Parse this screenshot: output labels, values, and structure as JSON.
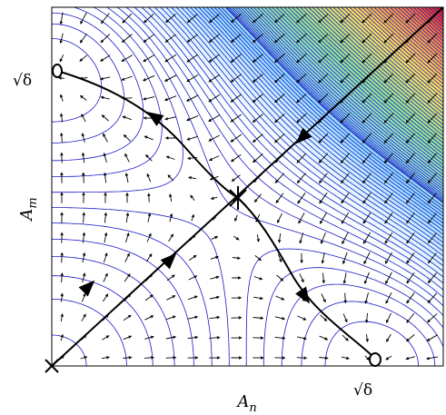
{
  "figure": {
    "axis_x_label": "A_n",
    "axis_y_label": "A_m",
    "x_tick_label": "√δ",
    "y_tick_label": "√δ"
  },
  "colors": {
    "contour": "#1a1ac8",
    "arrow": "#000000",
    "trajectory": "#000000",
    "background": "#ffffff"
  },
  "markers": {
    "origin": "X",
    "saddle": "star",
    "fixed_points_on_axes": "circle"
  }
}
